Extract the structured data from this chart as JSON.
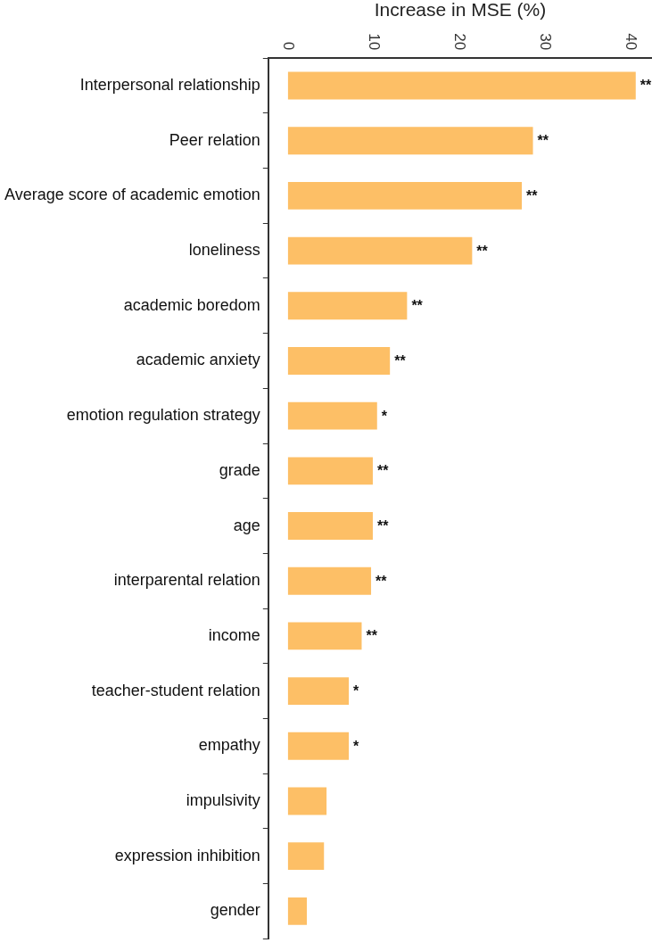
{
  "chart_data": {
    "type": "bar",
    "orientation": "horizontal",
    "xlabel": "Increase in MSE (%)",
    "categories": [
      "Interpersonal relationship",
      "Peer relation",
      "Average score of academic emotion",
      "loneliness",
      "academic boredom",
      "academic anxiety",
      "emotion regulation strategy",
      "grade",
      "age",
      "interparental relation",
      "income",
      "teacher-student relation",
      "empathy",
      "impulsivity",
      "expression inhibition",
      "gender"
    ],
    "values": [
      40.6,
      28.6,
      27.3,
      21.5,
      13.9,
      11.9,
      10.4,
      9.9,
      9.9,
      9.7,
      8.6,
      7.1,
      7.1,
      4.5,
      4.2,
      2.2
    ],
    "value_labels": [
      "**",
      "**",
      "**",
      "**",
      "**",
      "**",
      "*",
      "**",
      "**",
      "**",
      "**",
      "*",
      "*",
      null,
      null,
      null
    ],
    "color": "#fdbf66",
    "xlim": [
      -2.3,
      42.5
    ],
    "xticks": [
      0,
      10,
      20,
      30,
      40
    ],
    "grid": false,
    "legend": false
  }
}
